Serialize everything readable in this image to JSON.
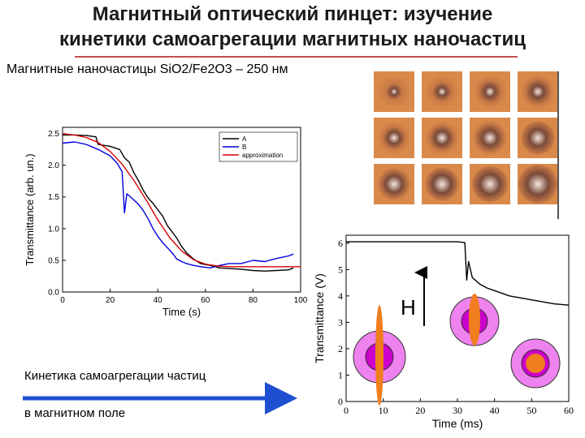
{
  "slide": {
    "title_line1": "Магнитный оптический пинцет: изучение",
    "title_line2": "кинетики самоагрегации магнитных наночастиц",
    "subtitle": "Магнитные наночастицы SiO2/Fe2O3 – 250 нм",
    "caption_line1": "Кинетика самоагрегации частиц",
    "caption_line2": "в магнитном поле",
    "field_label": "H",
    "colors": {
      "rule": "#c0504d",
      "arrow": "#1f4fd1",
      "outer_ring": "#ee82ee",
      "inner_core": "#cc00cc",
      "rod": "#f07d1e"
    }
  },
  "photos": {
    "rows": 3,
    "cols": 4,
    "color": "#d98a4a",
    "icon": "particle-aggregate-micrograph"
  },
  "chart_data": [
    {
      "type": "line",
      "xlabel": "Time (s)",
      "ylabel": "Transmittance (arb. un.)",
      "xlim": [
        0,
        100
      ],
      "ylim": [
        0,
        2.6
      ],
      "xticks": [
        0,
        20,
        40,
        60,
        80,
        100
      ],
      "yticks": [
        0.0,
        0.5,
        1.0,
        1.5,
        2.0,
        2.5
      ],
      "legend_position": "top-right",
      "series": [
        {
          "name": "A",
          "color": "#000000",
          "x": [
            0,
            5,
            10,
            14,
            15,
            20,
            24,
            26,
            28,
            30,
            32,
            34,
            36,
            38,
            40,
            42,
            44,
            46,
            48,
            50,
            52,
            55,
            58,
            62,
            66,
            70,
            75,
            80,
            85,
            90,
            95,
            97
          ],
          "y": [
            2.48,
            2.48,
            2.47,
            2.45,
            2.33,
            2.3,
            2.25,
            2.12,
            2.05,
            1.88,
            1.75,
            1.6,
            1.48,
            1.4,
            1.3,
            1.2,
            1.05,
            0.95,
            0.85,
            0.72,
            0.62,
            0.52,
            0.45,
            0.42,
            0.38,
            0.37,
            0.36,
            0.34,
            0.33,
            0.34,
            0.35,
            0.38
          ]
        },
        {
          "name": "B",
          "color": "#0000dd",
          "x": [
            0,
            5,
            10,
            15,
            20,
            23,
            25,
            26,
            27,
            28,
            30,
            32,
            34,
            36,
            38,
            40,
            42,
            44,
            46,
            48,
            50,
            52,
            55,
            58,
            62,
            66,
            70,
            75,
            80,
            85,
            90,
            95,
            97
          ],
          "y": [
            2.35,
            2.37,
            2.33,
            2.25,
            2.15,
            2.03,
            1.9,
            1.25,
            1.55,
            1.52,
            1.45,
            1.38,
            1.28,
            1.15,
            1.0,
            0.88,
            0.78,
            0.7,
            0.62,
            0.52,
            0.48,
            0.45,
            0.42,
            0.4,
            0.38,
            0.42,
            0.45,
            0.45,
            0.5,
            0.48,
            0.53,
            0.57,
            0.6
          ]
        },
        {
          "name": "approximation",
          "color": "#dd0000",
          "x": [
            0,
            5,
            10,
            15,
            20,
            25,
            30,
            35,
            40,
            45,
            50,
            55,
            60,
            65,
            70,
            80,
            90,
            100
          ],
          "y": [
            2.5,
            2.48,
            2.44,
            2.36,
            2.22,
            2.02,
            1.76,
            1.46,
            1.14,
            0.86,
            0.65,
            0.51,
            0.44,
            0.41,
            0.4,
            0.4,
            0.4,
            0.4
          ]
        }
      ]
    },
    {
      "type": "line",
      "xlabel": "Time (ms)",
      "ylabel": "Transmittance (V)",
      "xlim": [
        0,
        60
      ],
      "ylim": [
        0,
        6.3
      ],
      "xticks": [
        0,
        10,
        20,
        30,
        40,
        50,
        60
      ],
      "yticks": [
        0,
        1,
        2,
        3,
        4,
        5,
        6
      ],
      "series": [
        {
          "color": "#000000",
          "x": [
            0,
            10,
            20,
            30,
            32,
            32.5,
            33,
            34,
            36,
            38,
            40,
            44,
            48,
            52,
            56,
            60
          ],
          "y": [
            6.05,
            6.05,
            6.05,
            6.05,
            6.02,
            4.6,
            5.3,
            4.7,
            4.45,
            4.3,
            4.2,
            4.0,
            3.9,
            3.8,
            3.7,
            3.65
          ]
        }
      ]
    }
  ]
}
